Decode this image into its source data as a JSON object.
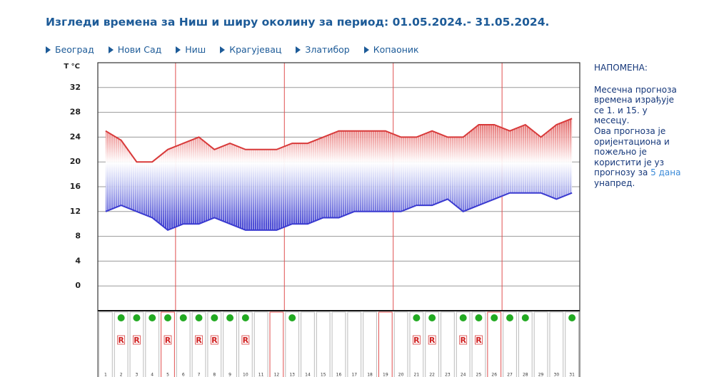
{
  "header": {
    "title": "Изгледи времена за Ниш и ширу околину за период: 01.05.2024.- 31.05.2024."
  },
  "nav": [
    "Београд",
    "Нови Сад",
    "Ниш",
    "Крагујевац",
    "Златибор",
    "Копаоник"
  ],
  "note": {
    "title": "НАПОМЕНА:",
    "lines": [
      "Месечна прогноза",
      "времена израђује",
      "се 1. и 15. у",
      "месецу.",
      "Ова прогноза је",
      "оријентациона и",
      "пожељно је",
      "користити је уз",
      "прогнозу за",
      "унапред."
    ],
    "link": "5 дана"
  },
  "chart_data": {
    "type": "line",
    "y_label": "T °C",
    "categories": [
      "1",
      "2",
      "3",
      "4",
      "5",
      "6",
      "7",
      "8",
      "9",
      "10",
      "11",
      "12",
      "13",
      "14",
      "15",
      "16",
      "17",
      "18",
      "19",
      "20",
      "21",
      "22",
      "23",
      "24",
      "25",
      "26",
      "27",
      "28",
      "29",
      "30",
      "31"
    ],
    "series": [
      {
        "color": "#d83a3a",
        "values": [
          25,
          23.5,
          20,
          20,
          22,
          23,
          24,
          22,
          23,
          22,
          22,
          22,
          23,
          23,
          24,
          25,
          25,
          25,
          25,
          24,
          24,
          25,
          24,
          24,
          26,
          26,
          25,
          26,
          24,
          26,
          27
        ]
      },
      {
        "color": "#3a3ad0",
        "values": [
          12,
          13,
          12,
          11,
          9,
          10,
          10,
          11,
          10,
          9,
          9,
          9,
          10,
          10,
          11,
          11,
          12,
          12,
          12,
          12,
          13,
          13,
          14,
          12,
          13,
          14,
          15,
          15,
          15,
          14,
          15
        ]
      }
    ],
    "ylim": [
      -4,
      36
    ],
    "yticks": [
      0,
      4,
      8,
      12,
      16,
      20,
      24,
      28,
      32
    ],
    "grid": true,
    "highlight_days": [
      5,
      12,
      19,
      26
    ],
    "highlight_color": "#e05050",
    "sun": [
      false,
      true,
      true,
      true,
      true,
      true,
      true,
      true,
      true,
      true,
      false,
      false,
      true,
      false,
      false,
      false,
      false,
      false,
      false,
      false,
      true,
      true,
      false,
      true,
      true,
      true,
      true,
      true,
      false,
      false,
      true
    ],
    "sun_color": "#22aa22",
    "rain": [
      false,
      true,
      true,
      false,
      true,
      false,
      true,
      true,
      false,
      true,
      false,
      false,
      false,
      false,
      false,
      false,
      false,
      false,
      false,
      false,
      true,
      true,
      false,
      true,
      true,
      false,
      false,
      false,
      false,
      false,
      false
    ],
    "rain_label": "R"
  }
}
